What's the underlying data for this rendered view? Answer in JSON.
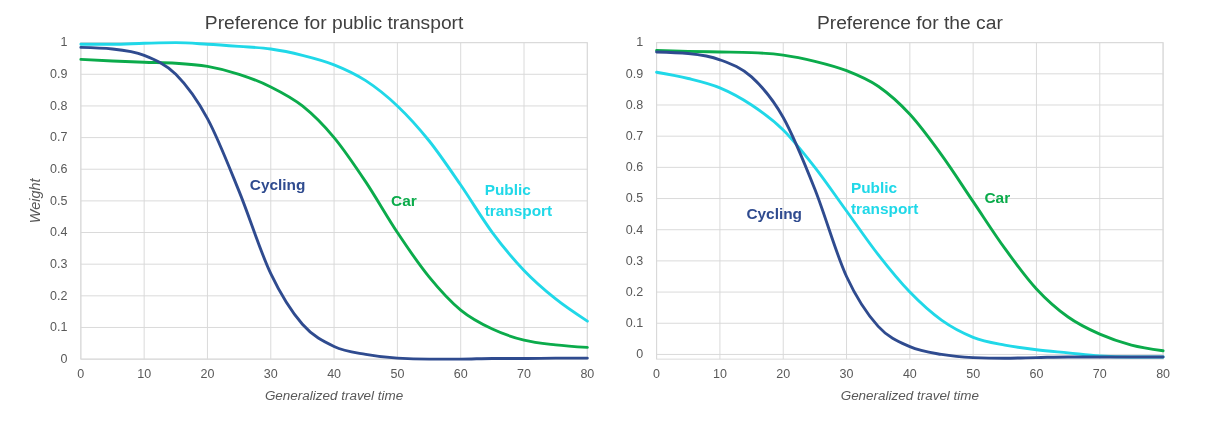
{
  "chart_data": [
    {
      "type": "line",
      "title": "Preference for public transport",
      "xlabel": "Generalized travel time",
      "ylabel": "Weight",
      "x": [
        0,
        5,
        10,
        15,
        20,
        25,
        30,
        35,
        40,
        45,
        50,
        55,
        60,
        65,
        70,
        75,
        80
      ],
      "xlim": [
        0,
        80
      ],
      "xticks": [
        0,
        10,
        20,
        30,
        40,
        50,
        60,
        70,
        80
      ],
      "ylim": [
        0,
        1
      ],
      "yticks": [
        0,
        0.1,
        0.2,
        0.3,
        0.4,
        0.5,
        0.6,
        0.7,
        0.8,
        0.9,
        1
      ],
      "grid": true,
      "legend": false,
      "series": [
        {
          "name": "Cycling",
          "color": "#2f4b8f",
          "values": [
            0.985,
            0.98,
            0.96,
            0.9,
            0.76,
            0.53,
            0.27,
            0.11,
            0.04,
            0.015,
            0.003,
            0,
            0,
            0.002,
            0.002,
            0.003,
            0.003
          ]
        },
        {
          "name": "Car",
          "color": "#0bab4b",
          "values": [
            0.947,
            0.942,
            0.938,
            0.935,
            0.925,
            0.9,
            0.86,
            0.8,
            0.7,
            0.56,
            0.4,
            0.26,
            0.155,
            0.095,
            0.06,
            0.045,
            0.037
          ]
        },
        {
          "name": "Public transport",
          "color": "#20d8e8",
          "values": [
            0.995,
            0.995,
            0.998,
            1,
            0.995,
            0.988,
            0.98,
            0.96,
            0.93,
            0.88,
            0.8,
            0.69,
            0.55,
            0.4,
            0.28,
            0.19,
            0.12
          ]
        }
      ]
    },
    {
      "type": "line",
      "title": "Preference for the car",
      "xlabel": "Generalized travel time",
      "x": [
        0,
        5,
        10,
        15,
        20,
        25,
        30,
        35,
        40,
        45,
        50,
        55,
        60,
        65,
        70,
        75,
        80
      ],
      "xlim": [
        0,
        80
      ],
      "xticks": [
        0,
        10,
        20,
        30,
        40,
        50,
        60,
        70,
        80
      ],
      "ylim": [
        -0.015,
        1
      ],
      "yticks": [
        0,
        0.1,
        0.2,
        0.3,
        0.4,
        0.5,
        0.6,
        0.7,
        0.8,
        0.9,
        1
      ],
      "grid": true,
      "legend": false,
      "series": [
        {
          "name": "Cycling",
          "color": "#2f4b8f",
          "values": [
            0.97,
            0.965,
            0.945,
            0.89,
            0.76,
            0.53,
            0.25,
            0.09,
            0.025,
            0,
            -0.01,
            -0.012,
            -0.01,
            -0.008,
            -0.008,
            -0.008,
            -0.008
          ]
        },
        {
          "name": "Car",
          "color": "#0bab4b",
          "values": [
            0.975,
            0.972,
            0.97,
            0.968,
            0.96,
            0.94,
            0.91,
            0.86,
            0.77,
            0.64,
            0.49,
            0.34,
            0.21,
            0.12,
            0.065,
            0.03,
            0.012
          ]
        },
        {
          "name": "Public transport",
          "color": "#20d8e8",
          "values": [
            0.905,
            0.885,
            0.855,
            0.8,
            0.72,
            0.6,
            0.46,
            0.32,
            0.2,
            0.11,
            0.055,
            0.03,
            0.015,
            0.005,
            -0.005,
            -0.008,
            -0.008
          ]
        }
      ]
    }
  ]
}
